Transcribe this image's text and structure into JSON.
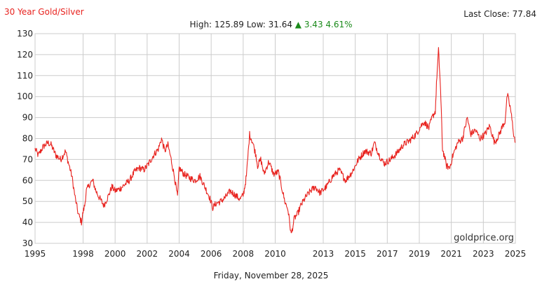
{
  "header": {
    "title": "30 Year Gold/Silver",
    "last_close_label": "Last Close:",
    "last_close_value": "77.84",
    "high_label": "High:",
    "high_value": "125.89",
    "low_label": "Low:",
    "low_value": "31.64",
    "change_arrow": "▲",
    "change_value": "3.43",
    "change_pct": "4.61%"
  },
  "footer": {
    "date": "Friday, November 28, 2025"
  },
  "watermark": "goldprice.org",
  "colors": {
    "line": "#e8231f",
    "title": "#e8231f",
    "up": "#1a8a1a",
    "grid": "#cccccc"
  },
  "chart_data": {
    "type": "line",
    "title": "30 Year Gold/Silver",
    "xlabel": "",
    "ylabel": "",
    "xlim": [
      1995,
      2025
    ],
    "ylim": [
      30,
      130
    ],
    "grid": true,
    "y_ticks": [
      "30",
      "40",
      "50",
      "60",
      "70",
      "80",
      "90",
      "100",
      "110",
      "120",
      "130"
    ],
    "x_ticks": [
      "1995",
      "1998",
      "2000",
      "2002",
      "2004",
      "2006",
      "2008",
      "2010",
      "2013",
      "2015",
      "2017",
      "2019",
      "2021",
      "2023",
      "2025"
    ],
    "series": [
      {
        "x": [
          1995.0,
          1995.2,
          1995.5,
          1995.8,
          1996.0,
          1996.3,
          1996.6,
          1996.9,
          1997.1,
          1997.3,
          1997.5,
          1997.7,
          1997.9,
          1998.0,
          1998.1,
          1998.2,
          1998.4,
          1998.6,
          1998.8,
          1999.0,
          1999.3,
          1999.6,
          1999.8,
          2000.0,
          2000.3,
          2000.6,
          2000.9,
          2001.2,
          2001.5,
          2001.8,
          2002.1,
          2002.4,
          2002.7,
          2002.9,
          2003.1,
          2003.3,
          2003.5,
          2003.7,
          2003.9,
          2004.0,
          2004.3,
          2004.7,
          2005.0,
          2005.3,
          2005.6,
          2005.9,
          2006.1,
          2006.3,
          2006.6,
          2006.9,
          2007.2,
          2007.5,
          2007.8,
          2008.0,
          2008.1,
          2008.2,
          2008.4,
          2008.6,
          2008.8,
          2008.9,
          2009.1,
          2009.3,
          2009.6,
          2009.9,
          2010.2,
          2010.4,
          2010.6,
          2010.8,
          2011.0,
          2011.2,
          2011.4,
          2011.6,
          2011.9,
          2012.2,
          2012.5,
          2012.8,
          2013.2,
          2013.6,
          2014.0,
          2014.4,
          2014.8,
          2015.2,
          2015.6,
          2016.0,
          2016.2,
          2016.5,
          2016.8,
          2017.2,
          2017.6,
          2018.0,
          2018.4,
          2018.8,
          2019.1,
          2019.3,
          2019.6,
          2019.8,
          2020.0,
          2020.1,
          2020.2,
          2020.3,
          2020.35,
          2020.45,
          2020.55,
          2020.7,
          2020.9,
          2021.1,
          2021.4,
          2021.7,
          2022.0,
          2022.2,
          2022.5,
          2022.8,
          2023.1,
          2023.4,
          2023.7,
          2024.0,
          2024.2,
          2024.35,
          2024.5,
          2024.7,
          2024.9,
          2025.0
        ],
        "y": [
          75,
          72,
          76,
          78,
          77,
          72,
          70,
          74,
          68,
          62,
          52,
          44,
          40,
          45,
          48,
          55,
          58,
          60,
          55,
          52,
          48,
          53,
          57,
          55,
          56,
          58,
          60,
          64,
          66,
          65,
          68,
          72,
          75,
          80,
          74,
          77,
          70,
          62,
          52,
          66,
          63,
          61,
          60,
          62,
          57,
          52,
          47,
          49,
          50,
          52,
          55,
          53,
          51,
          53,
          57,
          62,
          82,
          78,
          72,
          67,
          70,
          63,
          69,
          63,
          64,
          57,
          50,
          46,
          34,
          42,
          44,
          48,
          52,
          55,
          57,
          54,
          57,
          62,
          65,
          60,
          64,
          70,
          74,
          73,
          78,
          72,
          68,
          70,
          73,
          77,
          79,
          82,
          86,
          88,
          85,
          90,
          93,
          110,
          122,
          108,
          98,
          75,
          72,
          67,
          66,
          72,
          78,
          80,
          90,
          82,
          84,
          80,
          82,
          86,
          78,
          82,
          86,
          88,
          101,
          94,
          82,
          78
        ]
      }
    ]
  }
}
